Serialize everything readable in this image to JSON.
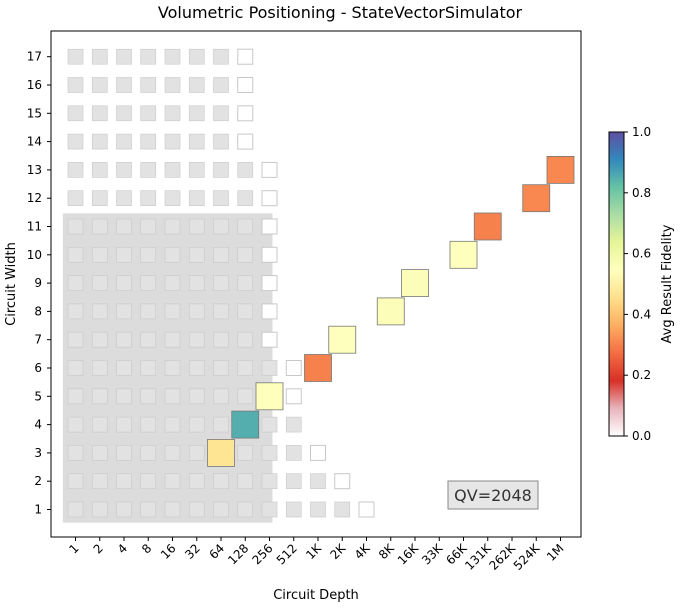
{
  "chart_data": {
    "type": "heatmap",
    "title": "Volumetric Positioning - StateVectorSimulator",
    "xlabel": "Circuit Depth",
    "ylabel": "Circuit Width",
    "x_ticks": [
      "1",
      "2",
      "4",
      "8",
      "16",
      "32",
      "64",
      "128",
      "256",
      "512",
      "1K",
      "2K",
      "4K",
      "8K",
      "16K",
      "33K",
      "66K",
      "131K",
      "262K",
      "524K",
      "1M"
    ],
    "y_ticks": [
      "1",
      "2",
      "3",
      "4",
      "5",
      "6",
      "7",
      "8",
      "9",
      "10",
      "11",
      "12",
      "13",
      "14",
      "15",
      "16",
      "17"
    ],
    "volumetric_region": {
      "max_depth_index": 8,
      "max_width": 11
    },
    "grid_cells": {
      "note": "gray = filled background cells; white = outlined empty cells",
      "columns": [
        {
          "x_index": 0,
          "gray_max_width": 17,
          "white_widths": []
        },
        {
          "x_index": 1,
          "gray_max_width": 17,
          "white_widths": []
        },
        {
          "x_index": 2,
          "gray_max_width": 17,
          "white_widths": []
        },
        {
          "x_index": 3,
          "gray_max_width": 17,
          "white_widths": []
        },
        {
          "x_index": 4,
          "gray_max_width": 17,
          "white_widths": []
        },
        {
          "x_index": 5,
          "gray_max_width": 17,
          "white_widths": []
        },
        {
          "x_index": 6,
          "gray_max_width": 17,
          "white_widths": []
        },
        {
          "x_index": 7,
          "gray_max_width": 13,
          "white_widths": [
            14,
            15,
            16,
            17
          ]
        },
        {
          "x_index": 8,
          "gray_max_width": 6,
          "white_widths": [
            7,
            8,
            9,
            10,
            11,
            12,
            13
          ]
        },
        {
          "x_index": 9,
          "gray_max_width": 4,
          "white_widths": [
            5,
            6
          ]
        },
        {
          "x_index": 10,
          "gray_max_width": 2,
          "white_widths": [
            3
          ]
        },
        {
          "x_index": 11,
          "gray_max_width": 1,
          "white_widths": [
            2
          ]
        },
        {
          "x_index": 12,
          "gray_max_width": 0,
          "white_widths": [
            1
          ]
        }
      ]
    },
    "points": [
      {
        "depth": "64",
        "width": 3,
        "fidelity": 0.47
      },
      {
        "depth": "128",
        "width": 4,
        "fidelity": 0.85
      },
      {
        "depth": "256",
        "width": 5,
        "fidelity": 0.55
      },
      {
        "depth": "1K",
        "width": 6,
        "fidelity": 0.3
      },
      {
        "depth": "2K",
        "width": 7,
        "fidelity": 0.55
      },
      {
        "depth": "8K",
        "width": 8,
        "fidelity": 0.56
      },
      {
        "depth": "16K",
        "width": 9,
        "fidelity": 0.56
      },
      {
        "depth": "66K",
        "width": 10,
        "fidelity": 0.55
      },
      {
        "depth": "131K",
        "width": 11,
        "fidelity": 0.3
      },
      {
        "depth": "524K",
        "width": 12,
        "fidelity": 0.31
      },
      {
        "depth": "1M",
        "width": 13,
        "fidelity": 0.31
      }
    ],
    "annotation": "QV=2048",
    "colorbar": {
      "label": "Avg Result Fidelity",
      "range": [
        0,
        1
      ],
      "ticks": [
        "0.0",
        "0.2",
        "0.4",
        "0.6",
        "0.8",
        "1.0"
      ]
    },
    "colors": {
      "gray_cell": "#e2e2e2",
      "volume_region": "#dcdcdc",
      "cell_border": "#c8c8c8",
      "colormap": [
        "#ffffff",
        "#e8b4bc",
        "#d73027",
        "#f46d43",
        "#fdae61",
        "#fee08b",
        "#ffffbf",
        "#e6f598",
        "#abdda4",
        "#66c2a5",
        "#3288bd",
        "#5e4fa2"
      ]
    }
  }
}
